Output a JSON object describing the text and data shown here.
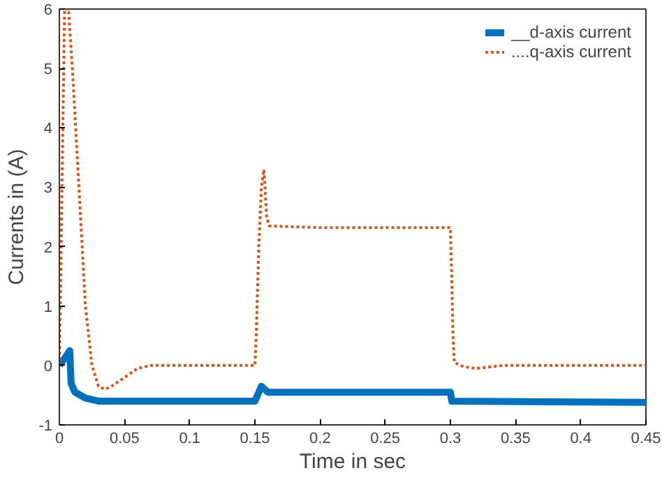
{
  "chart_data": {
    "type": "line",
    "xlabel": "Time in sec",
    "ylabel": "Currents in (A)",
    "xlim": [
      0,
      0.45
    ],
    "ylim": [
      -1,
      6
    ],
    "xticks": [
      0,
      0.05,
      0.1,
      0.15,
      0.2,
      0.25,
      0.3,
      0.35,
      0.4,
      0.45
    ],
    "yticks": [
      -1,
      0,
      1,
      2,
      3,
      4,
      5,
      6
    ],
    "grid": false,
    "legend": "top right",
    "series": [
      {
        "name": "__d-axis current",
        "color": "#0072bd",
        "line_style": "solid",
        "x": [
          0,
          0.005,
          0.008,
          0.009,
          0.012,
          0.02,
          0.03,
          0.05,
          0.1,
          0.15,
          0.155,
          0.16,
          0.2,
          0.3,
          0.301,
          0.45
        ],
        "values": [
          0,
          0.15,
          0.25,
          -0.3,
          -0.45,
          -0.55,
          -0.6,
          -0.6,
          -0.6,
          -0.6,
          -0.35,
          -0.45,
          -0.45,
          -0.45,
          -0.6,
          -0.62
        ]
      },
      {
        "name": "....q-axis current",
        "color": "#d95319",
        "line_style": "dotted",
        "x": [
          0,
          0.002,
          0.004,
          0.007,
          0.01,
          0.015,
          0.02,
          0.025,
          0.03,
          0.035,
          0.04,
          0.05,
          0.06,
          0.07,
          0.1,
          0.15,
          0.151,
          0.153,
          0.155,
          0.157,
          0.159,
          0.161,
          0.2,
          0.25,
          0.3,
          0.301,
          0.302,
          0.303,
          0.31,
          0.32,
          0.34,
          0.45
        ],
        "values": [
          0,
          3,
          6,
          6,
          5,
          3,
          1,
          0,
          -0.35,
          -0.4,
          -0.35,
          -0.2,
          -0.05,
          0,
          0,
          0,
          0.5,
          2,
          3,
          3.3,
          2.5,
          2.35,
          2.32,
          2.32,
          2.32,
          1.5,
          0.5,
          0.05,
          -0.02,
          -0.05,
          0,
          0
        ]
      }
    ]
  }
}
